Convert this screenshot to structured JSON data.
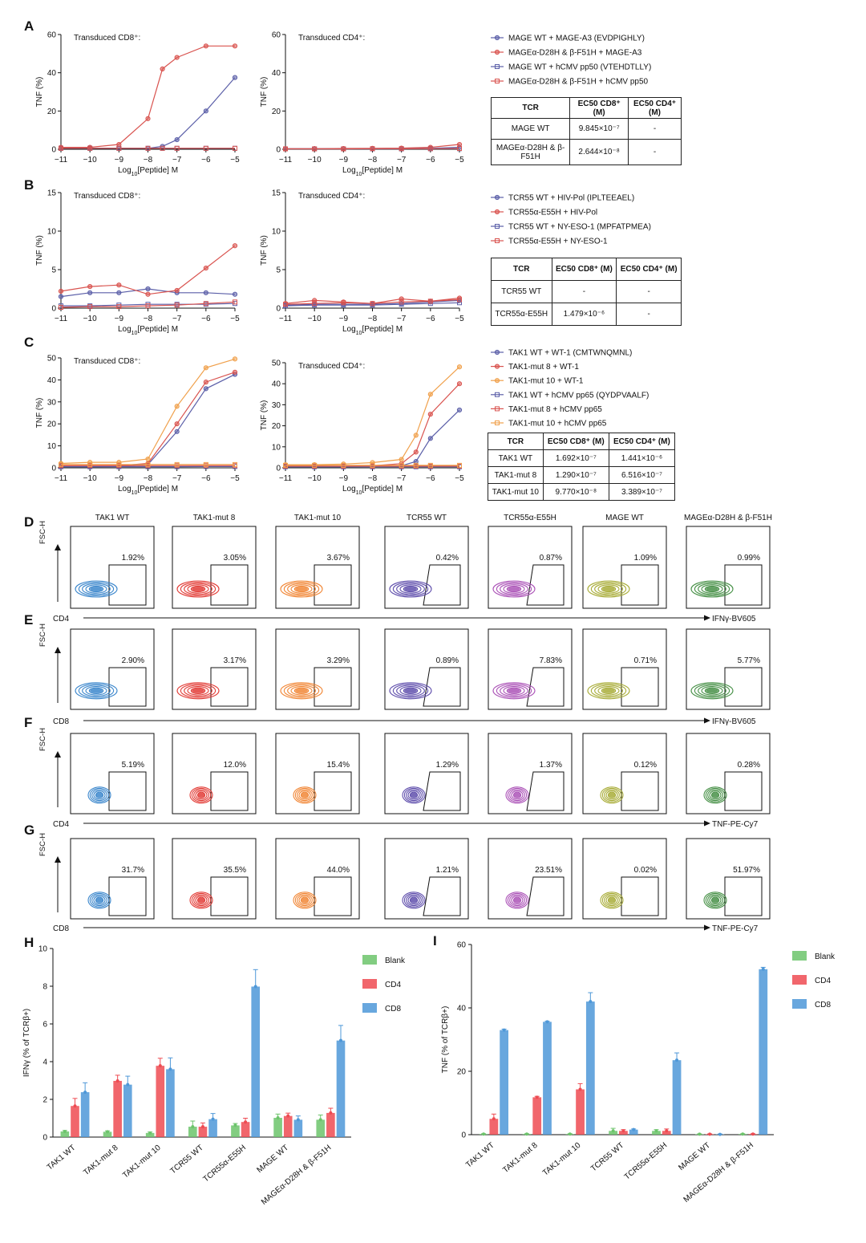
{
  "panels": {
    "A": {
      "letter": "A",
      "x_label": "Log10[Peptide] M",
      "legend": [
        {
          "label": "MAGE WT + MAGE-A3 (EVDPIGHLY)",
          "color": "#5b5fa8",
          "marker": "circle"
        },
        {
          "label": "MAGEα-D28H & β-F51H + MAGE-A3",
          "color": "#d9534f",
          "marker": "circle"
        },
        {
          "label": "MAGE WT + hCMV pp50 (VTEHDTLLY)",
          "color": "#5b5fa8",
          "marker": "square"
        },
        {
          "label": "MAGEα-D28H & β-F51H + hCMV pp50",
          "color": "#d9534f",
          "marker": "square"
        }
      ],
      "table": {
        "headers": [
          "TCR",
          "EC50 CD8⁺ (M)",
          "EC50 CD4⁺ (M)"
        ],
        "rows": [
          [
            "MAGE WT",
            "9.845×10⁻⁷",
            "-"
          ],
          [
            "MAGEα-D28H & β-F51H",
            "2.644×10⁻⁸",
            "-"
          ]
        ]
      }
    },
    "B": {
      "letter": "B",
      "x_label": "Log10[Peptide] M",
      "legend": [
        {
          "label": "TCR55 WT + HIV-Pol (IPLTEEAEL)",
          "color": "#5b5fa8",
          "marker": "circle"
        },
        {
          "label": "TCR55α-E55H + HIV-Pol",
          "color": "#d9534f",
          "marker": "circle"
        },
        {
          "label": "TCR55 WT + NY-ESO-1 (MPFATPMEA)",
          "color": "#5b5fa8",
          "marker": "square"
        },
        {
          "label": "TCR55α-E55H + NY-ESO-1",
          "color": "#d9534f",
          "marker": "square"
        }
      ],
      "table": {
        "headers": [
          "TCR",
          "EC50 CD8⁺ (M)",
          "EC50 CD4⁺ (M)"
        ],
        "rows": [
          [
            "TCR55 WT",
            "-",
            "-"
          ],
          [
            "TCR55α-E55H",
            "1.479×10⁻⁶",
            "-"
          ]
        ]
      }
    },
    "C": {
      "letter": "C",
      "x_label": "Log10[Peptide] M",
      "legend": [
        {
          "label": "TAK1 WT + WT-1 (CMTWNQMNL)",
          "color": "#5b5fa8",
          "marker": "circle"
        },
        {
          "label": "TAK1-mut 8 + WT-1",
          "color": "#d9534f",
          "marker": "circle"
        },
        {
          "label": "TAK1-mut 10 + WT-1",
          "color": "#f0a04b",
          "marker": "circle"
        },
        {
          "label": "TAK1 WT + hCMV pp65 (QYDPVAALF)",
          "color": "#5b5fa8",
          "marker": "square"
        },
        {
          "label": "TAK1-mut 8 + hCMV pp65",
          "color": "#d9534f",
          "marker": "square"
        },
        {
          "label": "TAK1-mut 10 + hCMV pp65",
          "color": "#f0a04b",
          "marker": "square"
        }
      ],
      "table": {
        "headers": [
          "TCR",
          "EC50 CD8⁺ (M)",
          "EC50 CD4⁺ (M)"
        ],
        "rows": [
          [
            "TAK1 WT",
            "1.692×10⁻⁷",
            "1.441×10⁻⁶"
          ],
          [
            "TAK1-mut 8",
            "1.290×10⁻⁷",
            "6.516×10⁻⁷"
          ],
          [
            "TAK1-mut 10",
            "9.770×10⁻⁸",
            "3.389×10⁻⁷"
          ]
        ]
      }
    },
    "flow_letters": [
      "D",
      "E",
      "F",
      "G"
    ],
    "flow_columns": [
      "TAK1 WT",
      "TAK1-mut 8",
      "TAK1-mut 10",
      "TCR55 WT",
      "TCR55α-E55H",
      "MAGE WT",
      "MAGEα-D28H & β-F51H"
    ],
    "flow_colors": [
      "#2f7fc9",
      "#e0302a",
      "#f07f2a",
      "#5645a8",
      "#a649b3",
      "#a3a82c",
      "#3c8a3c"
    ],
    "flow_rows": [
      {
        "letter": "D",
        "y_label": "FSC-H",
        "x_left": "CD4",
        "x_right": "IFNγ-BV605",
        "percents": [
          "1.92%",
          "3.05%",
          "3.67%",
          "0.42%",
          "0.87%",
          "1.09%",
          "0.99%"
        ]
      },
      {
        "letter": "E",
        "y_label": "FSC-H",
        "x_left": "CD8",
        "x_right": "IFNγ-BV605",
        "percents": [
          "2.90%",
          "3.17%",
          "3.29%",
          "0.89%",
          "7.83%",
          "0.71%",
          "5.77%"
        ]
      },
      {
        "letter": "F",
        "y_label": "FSC-H",
        "x_left": "CD4",
        "x_right": "TNF-PE-Cy7",
        "percents": [
          "5.19%",
          "12.0%",
          "15.4%",
          "1.29%",
          "1.37%",
          "0.12%",
          "0.28%"
        ]
      },
      {
        "letter": "G",
        "y_label": "FSC-H",
        "x_left": "CD8",
        "x_right": "TNF-PE-Cy7",
        "percents": [
          "31.7%",
          "35.5%",
          "44.0%",
          "1.21%",
          "23.51%",
          "0.02%",
          "51.97%"
        ]
      }
    ],
    "H": {
      "letter": "H"
    },
    "I": {
      "letter": "I"
    }
  },
  "chart_data": [
    {
      "id": "A-CD8",
      "type": "line",
      "title": "Transduced CD8⁺:",
      "xlabel": "Log10[Peptide] M",
      "ylabel": "TNF (%)",
      "xlim": [
        -11,
        -5
      ],
      "ylim": [
        0,
        60
      ],
      "yticks": [
        0,
        20,
        40,
        60
      ],
      "xticks": [
        -11,
        -10,
        -9,
        -8,
        -7,
        -6,
        -5
      ],
      "x": [
        -11,
        -10,
        -9,
        -8,
        -7.5,
        -7,
        -6,
        -5
      ],
      "series": [
        {
          "name": "MAGE WT + MAGE-A3 (EVDPIGHLY)",
          "color": "#5b5fa8",
          "marker": "circle",
          "values": [
            0.5,
            0.5,
            0.5,
            0.5,
            1.5,
            5,
            20,
            37.5
          ]
        },
        {
          "name": "MAGEα-D28H & β-F51H + MAGE-A3",
          "color": "#d9534f",
          "marker": "circle",
          "values": [
            1,
            1,
            2.5,
            16,
            42,
            48,
            54,
            54
          ]
        },
        {
          "name": "MAGE WT + hCMV pp50 (VTEHDTLLY)",
          "color": "#5b5fa8",
          "marker": "square",
          "values": [
            0.5,
            0.5,
            0.5,
            0.5,
            0.5,
            0.5,
            0.5,
            0.5
          ]
        },
        {
          "name": "MAGEα-D28H & β-F51H + hCMV pp50",
          "color": "#d9534f",
          "marker": "square",
          "values": [
            0.5,
            0.5,
            0.5,
            0.5,
            0.5,
            0.5,
            0.5,
            0.5
          ]
        }
      ]
    },
    {
      "id": "A-CD4",
      "type": "line",
      "title": "Transduced CD4⁺:",
      "xlabel": "Log10[Peptide] M",
      "ylabel": "TNF (%)",
      "xlim": [
        -11,
        -5
      ],
      "ylim": [
        0,
        60
      ],
      "yticks": [
        0,
        20,
        40,
        60
      ],
      "xticks": [
        -11,
        -10,
        -9,
        -8,
        -7,
        -6,
        -5
      ],
      "x": [
        -11,
        -10,
        -9,
        -8,
        -7,
        -6,
        -5
      ],
      "series": [
        {
          "name": "MAGE WT + MAGE-A3 (EVDPIGHLY)",
          "color": "#5b5fa8",
          "marker": "circle",
          "values": [
            0.3,
            0.3,
            0.3,
            0.3,
            0.4,
            0.5,
            1
          ]
        },
        {
          "name": "MAGEα-D28H & β-F51H + MAGE-A3",
          "color": "#d9534f",
          "marker": "circle",
          "values": [
            0.3,
            0.3,
            0.4,
            0.5,
            0.6,
            1,
            2.5
          ]
        },
        {
          "name": "MAGE WT + hCMV pp50 (VTEHDTLLY)",
          "color": "#5b5fa8",
          "marker": "square",
          "values": [
            0.2,
            0.2,
            0.2,
            0.2,
            0.2,
            0.3,
            0.3
          ]
        },
        {
          "name": "MAGEα-D28H & β-F51H + hCMV pp50",
          "color": "#d9534f",
          "marker": "square",
          "values": [
            0.2,
            0.2,
            0.2,
            0.3,
            0.3,
            0.3,
            0.4
          ]
        }
      ]
    },
    {
      "id": "B-CD8",
      "type": "line",
      "title": "Transduced CD8⁺:",
      "xlabel": "Log10[Peptide] M",
      "ylabel": "TNF (%)",
      "xlim": [
        -11,
        -5
      ],
      "ylim": [
        0,
        15
      ],
      "yticks": [
        0,
        5,
        10,
        15
      ],
      "xticks": [
        -11,
        -10,
        -9,
        -8,
        -7,
        -6,
        -5
      ],
      "x": [
        -11,
        -10,
        -9,
        -8,
        -7,
        -6,
        -5
      ],
      "series": [
        {
          "name": "TCR55 WT + HIV-Pol (IPLTEEAEL)",
          "color": "#5b5fa8",
          "marker": "circle",
          "values": [
            1.5,
            2,
            2,
            2.5,
            2,
            2,
            1.8
          ]
        },
        {
          "name": "TCR55α-E55H + HIV-Pol",
          "color": "#d9534f",
          "marker": "circle",
          "values": [
            2.2,
            2.8,
            3.0,
            1.8,
            2.3,
            5.2,
            8.1
          ]
        },
        {
          "name": "TCR55 WT + NY-ESO-1 (MPFATPMEA)",
          "color": "#5b5fa8",
          "marker": "square",
          "values": [
            0.3,
            0.3,
            0.4,
            0.5,
            0.5,
            0.5,
            0.6
          ]
        },
        {
          "name": "TCR55α-E55H + NY-ESO-1",
          "color": "#d9534f",
          "marker": "square",
          "values": [
            0.1,
            0.2,
            0.2,
            0.3,
            0.4,
            0.6,
            0.8
          ]
        }
      ]
    },
    {
      "id": "B-CD4",
      "type": "line",
      "title": "Transduced CD4⁺:",
      "xlabel": "Log10[Peptide] M",
      "ylabel": "TNF (%)",
      "xlim": [
        -11,
        -5
      ],
      "ylim": [
        0,
        15
      ],
      "yticks": [
        0,
        5,
        10,
        15
      ],
      "xticks": [
        -11,
        -10,
        -9,
        -8,
        -7,
        -6,
        -5
      ],
      "x": [
        -11,
        -10,
        -9,
        -8,
        -7,
        -6,
        -5
      ],
      "series": [
        {
          "name": "TCR55 WT + HIV-Pol (IPLTEEAEL)",
          "color": "#5b5fa8",
          "marker": "circle",
          "values": [
            0.4,
            0.5,
            0.5,
            0.5,
            0.6,
            0.8,
            1.0
          ]
        },
        {
          "name": "TCR55α-E55H + HIV-Pol",
          "color": "#d9534f",
          "marker": "circle",
          "values": [
            0.6,
            1.0,
            0.8,
            0.6,
            1.2,
            0.9,
            1.3
          ]
        },
        {
          "name": "TCR55 WT + NY-ESO-1 (MPFATPMEA)",
          "color": "#5b5fa8",
          "marker": "square",
          "values": [
            0.3,
            0.4,
            0.4,
            0.4,
            0.5,
            0.6,
            0.7
          ]
        },
        {
          "name": "TCR55α-E55H + NY-ESO-1",
          "color": "#d9534f",
          "marker": "square",
          "values": [
            0.5,
            0.6,
            0.7,
            0.6,
            0.8,
            0.9,
            1.1
          ]
        }
      ]
    },
    {
      "id": "C-CD8",
      "type": "line",
      "title": "Transduced CD8⁺:",
      "xlabel": "Log10[Peptide] M",
      "ylabel": "TNF (%)",
      "xlim": [
        -11,
        -5
      ],
      "ylim": [
        0,
        50
      ],
      "yticks": [
        0,
        10,
        20,
        30,
        40,
        50
      ],
      "xticks": [
        -11,
        -10,
        -9,
        -8,
        -7,
        -6,
        -5
      ],
      "x": [
        -11,
        -10,
        -9,
        -8,
        -7,
        -6,
        -5
      ],
      "series": [
        {
          "name": "TAK1 WT + WT-1 (CMTWNQMNL)",
          "color": "#5b5fa8",
          "marker": "circle",
          "values": [
            0.5,
            0.5,
            0.6,
            1.5,
            16.5,
            36,
            42.5
          ]
        },
        {
          "name": "TAK1-mut 8 + WT-1",
          "color": "#d9534f",
          "marker": "circle",
          "values": [
            1,
            1,
            1,
            2,
            20,
            39,
            43.5
          ]
        },
        {
          "name": "TAK1-mut 10 + WT-1",
          "color": "#f0a04b",
          "marker": "circle",
          "values": [
            2,
            2.5,
            2.5,
            4,
            28,
            45.5,
            49.5
          ]
        },
        {
          "name": "TAK1 WT + hCMV pp65 (QYDPVAALF)",
          "color": "#5b5fa8",
          "marker": "square",
          "values": [
            0.5,
            0.5,
            0.5,
            0.5,
            0.5,
            0.6,
            0.6
          ]
        },
        {
          "name": "TAK1-mut 8 + hCMV pp65",
          "color": "#d9534f",
          "marker": "square",
          "values": [
            1,
            1,
            1,
            1,
            1,
            1,
            1
          ]
        },
        {
          "name": "TAK1-mut 10 + hCMV pp65",
          "color": "#f0a04b",
          "marker": "square",
          "values": [
            1.5,
            1.5,
            1.5,
            1.5,
            1.5,
            1.5,
            1.5
          ]
        }
      ]
    },
    {
      "id": "C-CD4",
      "type": "line",
      "title": "Transduced CD4⁺:",
      "xlabel": "Log10[Peptide] M",
      "ylabel": "TNF (%)",
      "xlim": [
        -11,
        -5
      ],
      "ylim": [
        0,
        50
      ],
      "yticks": [
        0,
        10,
        20,
        30,
        40,
        50
      ],
      "xticks": [
        -11,
        -10,
        -9,
        -8,
        -7,
        -6,
        -5
      ],
      "x": [
        -11,
        -10,
        -9,
        -8,
        -7,
        -6.5,
        -6,
        -5
      ],
      "series": [
        {
          "name": "TAK1 WT + WT-1 (CMTWNQMNL)",
          "color": "#5b5fa8",
          "marker": "circle",
          "values": [
            0.5,
            0.5,
            0.5,
            0.6,
            1.0,
            3,
            14,
            27.5
          ]
        },
        {
          "name": "TAK1-mut 8 + WT-1",
          "color": "#d9534f",
          "marker": "circle",
          "values": [
            0.8,
            0.8,
            1,
            1,
            2,
            7.5,
            25.5,
            40
          ]
        },
        {
          "name": "TAK1-mut 10 + WT-1",
          "color": "#f0a04b",
          "marker": "circle",
          "values": [
            1.5,
            1.5,
            1.8,
            2.5,
            4,
            15.5,
            35,
            48
          ]
        },
        {
          "name": "TAK1 WT + hCMV pp65 (QYDPVAALF)",
          "color": "#5b5fa8",
          "marker": "square",
          "values": [
            0.5,
            0.5,
            0.5,
            0.5,
            0.5,
            0.5,
            0.5,
            0.5
          ]
        },
        {
          "name": "TAK1-mut 8 + hCMV pp65",
          "color": "#d9534f",
          "marker": "square",
          "values": [
            0.8,
            0.8,
            0.8,
            0.8,
            0.8,
            0.8,
            0.8,
            0.8
          ]
        },
        {
          "name": "TAK1-mut 10 + hCMV pp65",
          "color": "#f0a04b",
          "marker": "square",
          "values": [
            1.2,
            1.2,
            1.2,
            1.2,
            1.2,
            1.2,
            1.2,
            1.2
          ]
        }
      ]
    },
    {
      "id": "H",
      "type": "bar",
      "ylabel": "IFNγ (% of TCRβ+)",
      "ylim": [
        0,
        10
      ],
      "yticks": [
        0,
        2,
        4,
        6,
        8,
        10
      ],
      "categories": [
        "TAK1 WT",
        "TAK1-mut 8",
        "TAK1-mut 10",
        "TCR55 WT",
        "TCR55α-E55H",
        "MAGE WT",
        "MAGEα-D28H & β-F51H"
      ],
      "series": [
        {
          "name": "Blank",
          "color": "#6cc46b",
          "values": [
            0.3,
            0.28,
            0.22,
            0.55,
            0.62,
            1.02,
            0.92
          ]
        },
        {
          "name": "CD4",
          "color": "#ee4b52",
          "values": [
            1.65,
            2.98,
            3.78,
            0.55,
            0.8,
            1.12,
            1.28
          ]
        },
        {
          "name": "CD8",
          "color": "#4e98d8",
          "values": [
            2.38,
            2.78,
            3.6,
            0.95,
            7.98,
            0.92,
            5.12
          ]
        }
      ],
      "errors": [
        [
          0.05,
          0.05,
          0.05,
          0.3,
          0.1,
          0.2,
          0.25
        ],
        [
          0.4,
          0.3,
          0.4,
          0.2,
          0.2,
          0.15,
          0.25
        ],
        [
          0.5,
          0.45,
          0.6,
          0.3,
          0.9,
          0.2,
          0.8
        ]
      ],
      "legend": [
        "Blank",
        "CD4",
        "CD8"
      ]
    },
    {
      "id": "I",
      "type": "bar",
      "ylabel": "TNF (% of TCRβ+)",
      "ylim": [
        0,
        60
      ],
      "yticks": [
        0,
        20,
        40,
        60
      ],
      "categories": [
        "TAK1 WT",
        "TAK1-mut 8",
        "TAK1-mut 10",
        "TCR55 WT",
        "TCR55α-E55H",
        "MAGE WT",
        "MAGEα-D28H & β-F51H"
      ],
      "series": [
        {
          "name": "Blank",
          "color": "#6cc46b",
          "values": [
            0.2,
            0.2,
            0.2,
            1.2,
            1.2,
            0.15,
            0.2
          ]
        },
        {
          "name": "CD4",
          "color": "#ee4b52",
          "values": [
            5.0,
            11.8,
            14.3,
            1.2,
            1.2,
            0.15,
            0.2
          ]
        },
        {
          "name": "CD8",
          "color": "#4e98d8",
          "values": [
            33.0,
            35.6,
            42.0,
            1.6,
            23.5,
            0.1,
            52.2
          ]
        }
      ],
      "errors": [
        [
          0.1,
          0.1,
          0.1,
          0.8,
          0.4,
          0.1,
          0.1
        ],
        [
          1.5,
          0.3,
          1.8,
          0.4,
          0.6,
          0.1,
          0.1
        ],
        [
          0.3,
          0.2,
          2.8,
          0.2,
          2.3,
          0.1,
          0.6
        ]
      ],
      "legend": [
        "Blank",
        "CD4",
        "CD8"
      ]
    }
  ]
}
